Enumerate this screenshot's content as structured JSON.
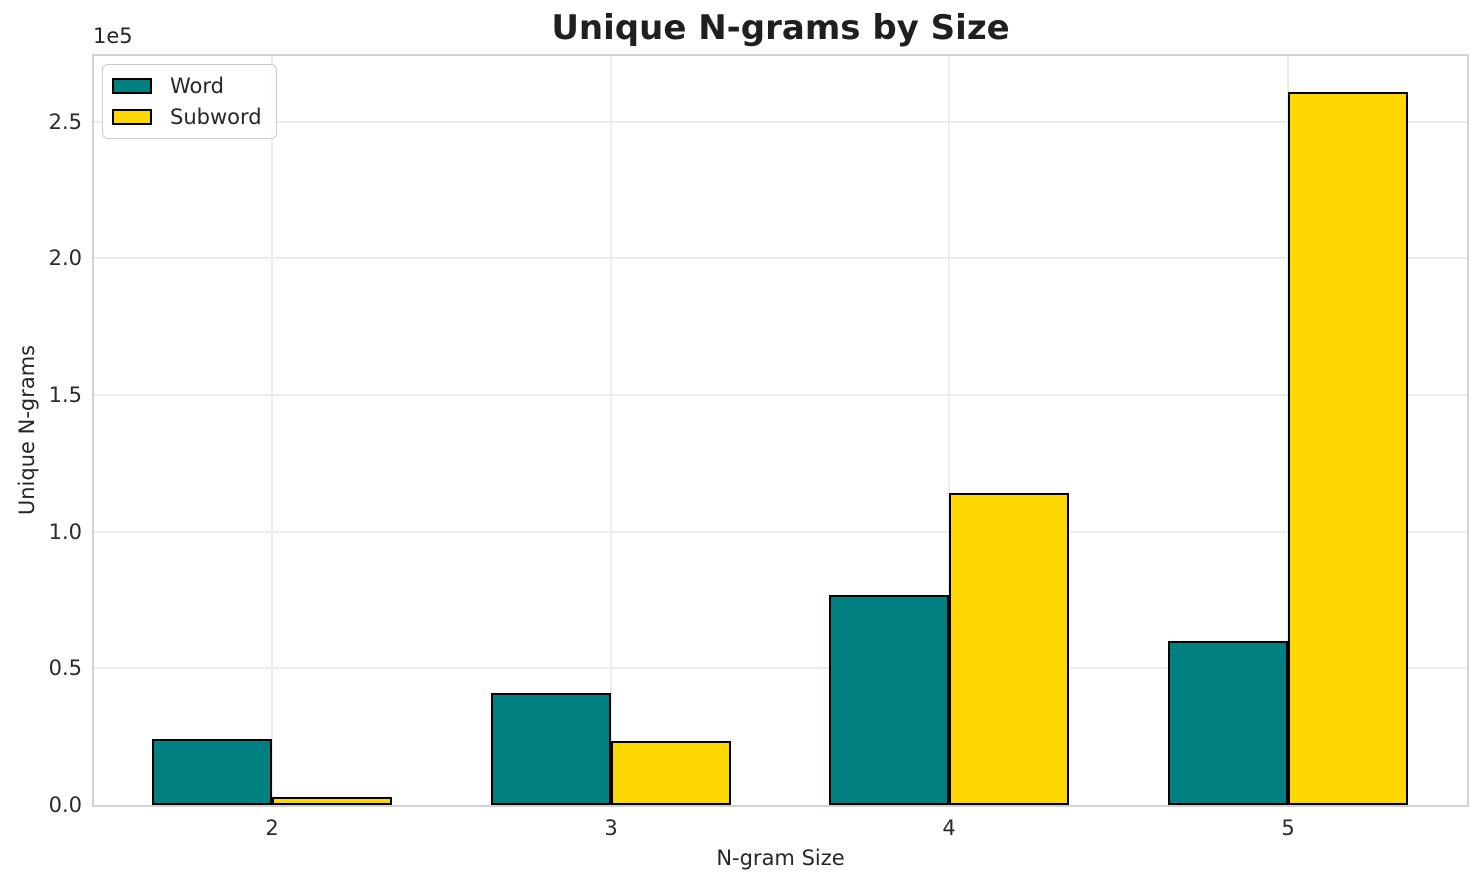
{
  "chart_data": {
    "type": "bar",
    "title": "Unique N-grams by Size",
    "xlabel": "N-gram Size",
    "ylabel": "Unique N-grams",
    "offset_text": "1e5",
    "categories": [
      "2",
      "3",
      "4",
      "5"
    ],
    "series": [
      {
        "name": "Word",
        "color": "#008080",
        "values": [
          24000,
          41000,
          77000,
          60000
        ]
      },
      {
        "name": "Subword",
        "color": "#FFD700",
        "values": [
          3000,
          23500,
          114000,
          261000
        ]
      }
    ],
    "bar_edge_color": "#000000",
    "ylim": [
      0,
      274000
    ],
    "yticks": [
      0,
      50000,
      100000,
      150000,
      200000,
      250000
    ],
    "ytick_labels": [
      "0.0",
      "0.5",
      "1.0",
      "1.5",
      "2.0",
      "2.5"
    ],
    "grid": true,
    "legend_position": "upper-left"
  }
}
